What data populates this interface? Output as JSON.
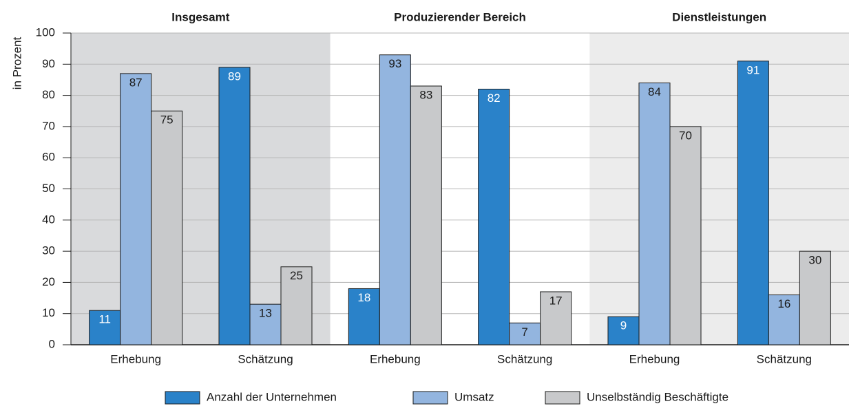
{
  "chart_data": {
    "type": "bar",
    "panels": [
      "Insgesamt",
      "Produzierender Bereich",
      "Dienstleistungen"
    ],
    "panel_colors": [
      "#d9dadc",
      "#ffffff",
      "#ececec"
    ],
    "categories": [
      "Erhebung",
      "Schätzung",
      "Erhebung",
      "Schätzung",
      "Erhebung",
      "Schätzung"
    ],
    "series": [
      {
        "name": "Anzahl der Unternehmen",
        "color": "#2a82c9",
        "label_color": "#ffffff",
        "values": [
          11,
          89,
          18,
          82,
          9,
          91
        ]
      },
      {
        "name": "Umsatz",
        "color": "#93b5df",
        "label_color": "#1a1a1a",
        "values": [
          87,
          13,
          93,
          7,
          84,
          16
        ]
      },
      {
        "name": "Unselbständig Beschäftigte",
        "color": "#c8c9cb",
        "label_color": "#1a1a1a",
        "values": [
          75,
          25,
          83,
          17,
          70,
          30
        ]
      }
    ],
    "ylabel": "in Prozent",
    "ylim": [
      0,
      100
    ],
    "yticks": [
      0,
      10,
      20,
      30,
      40,
      50,
      60,
      70,
      80,
      90,
      100
    ],
    "grid": true,
    "legend": "bottom"
  }
}
